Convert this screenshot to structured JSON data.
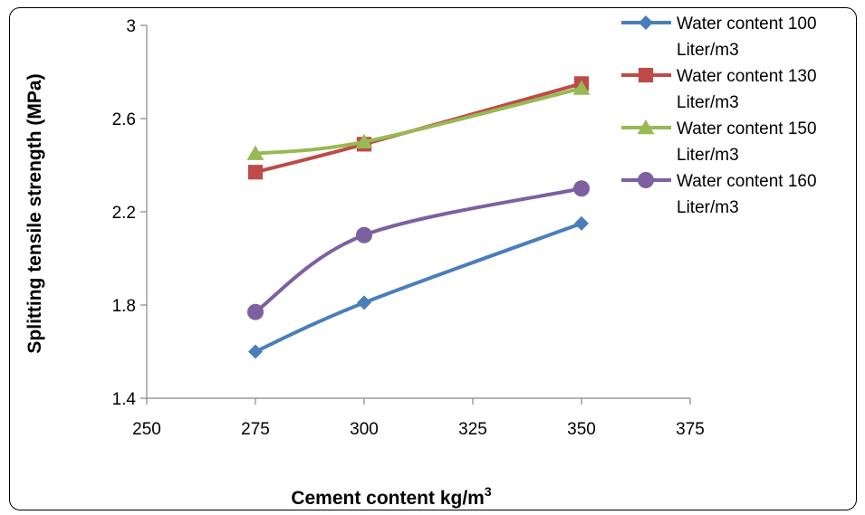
{
  "chart_data": {
    "type": "line",
    "title": "",
    "xlabel": "Cement content kg/m",
    "xlabel_sup": "3",
    "ylabel": "Splitting tensile strength (MPa)",
    "xlim": [
      250,
      375
    ],
    "ylim": [
      1.4,
      3.0
    ],
    "xticks": [
      "250",
      "275",
      "300",
      "325",
      "350",
      "375"
    ],
    "yticks": [
      "1.4",
      "1.8",
      "2.2",
      "2.6",
      "3"
    ],
    "grid": false,
    "legend_position": "top-right",
    "x": [
      275,
      300,
      350
    ],
    "series": [
      {
        "name_line1": "Water content 100",
        "name_line2": "Liter/m3",
        "values": [
          1.6,
          1.81,
          2.15
        ],
        "color": "#4a7ebb",
        "marker": "diamond"
      },
      {
        "name_line1": "Water content 130",
        "name_line2": "Liter/m3",
        "values": [
          2.37,
          2.49,
          2.75
        ],
        "color": "#be4b48",
        "marker": "square"
      },
      {
        "name_line1": "Water content 150",
        "name_line2": "Liter/m3",
        "values": [
          2.45,
          2.5,
          2.73
        ],
        "color": "#98b954",
        "marker": "triangle"
      },
      {
        "name_line1": "Water content 160",
        "name_line2": "Liter/m3",
        "values": [
          1.77,
          2.1,
          2.3
        ],
        "color": "#7d60a0",
        "marker": "circle"
      }
    ]
  }
}
